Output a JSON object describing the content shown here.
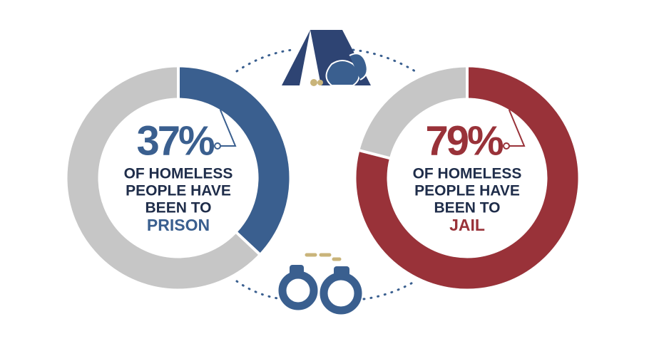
{
  "chart_data": [
    {
      "type": "donut",
      "values": [
        37
      ],
      "value_labels": [
        "37%"
      ],
      "color": "#3a5f8f",
      "track_color": "#c6c6c6",
      "label_lines": [
        "OF HOMELESS",
        "PEOPLE HAVE",
        "BEEN TO"
      ],
      "highlight": "PRISON"
    },
    {
      "type": "donut",
      "values": [
        79
      ],
      "value_labels": [
        "79%"
      ],
      "color": "#993239",
      "track_color": "#c6c6c6",
      "label_lines": [
        "OF HOMELESS",
        "PEOPLE HAVE",
        "BEEN TO"
      ],
      "highlight": "JAIL"
    }
  ]
}
